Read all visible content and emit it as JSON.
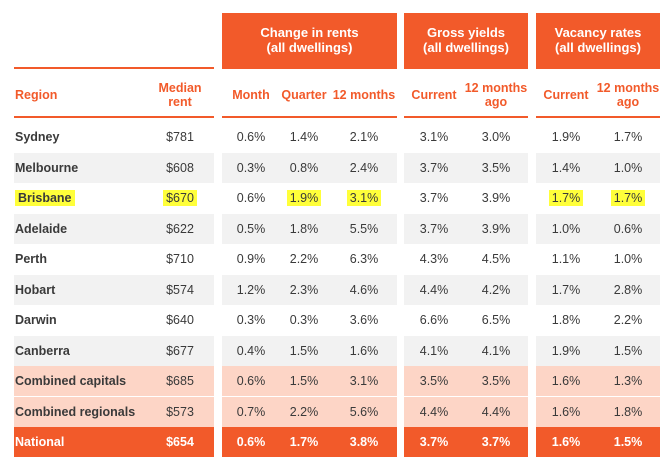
{
  "group_headers": {
    "change": "Change in rents\n(all dwellings)",
    "yields": "Gross yields\n(all dwellings)",
    "vacancy": "Vacancy rates\n(all dwellings)"
  },
  "columns": {
    "region": "Region",
    "median": "Median\nrent",
    "month": "Month",
    "quarter": "Quarter",
    "twelve": "12 months",
    "yield_current": "Current",
    "yield_12": "12 months\nago",
    "vac_current": "Current",
    "vac_12": "12 months\nago"
  },
  "colors": {
    "accent": "#f25a2a",
    "row_alt": "#f2f2f2",
    "combined_bg": "#fdd5c6",
    "national_bg": "#f25a2a",
    "highlight": "#ffff3a"
  },
  "rows": [
    {
      "region": "Sydney",
      "median": "$781",
      "month": "0.6%",
      "quarter": "1.4%",
      "twelve": "2.1%",
      "yc": "3.1%",
      "y12": "3.0%",
      "vc": "1.9%",
      "v12": "1.7%",
      "style": "white"
    },
    {
      "region": "Melbourne",
      "median": "$608",
      "month": "0.3%",
      "quarter": "0.8%",
      "twelve": "2.4%",
      "yc": "3.7%",
      "y12": "3.5%",
      "vc": "1.4%",
      "v12": "1.0%",
      "style": "grey"
    },
    {
      "region": "Brisbane",
      "median": "$670",
      "month": "0.6%",
      "quarter": "1.9%",
      "twelve": "3.1%",
      "yc": "3.7%",
      "y12": "3.9%",
      "vc": "1.7%",
      "v12": "1.7%",
      "style": "white",
      "highlighted": [
        "region",
        "median",
        "quarter",
        "twelve",
        "vc",
        "v12"
      ]
    },
    {
      "region": "Adelaide",
      "median": "$622",
      "month": "0.5%",
      "quarter": "1.8%",
      "twelve": "5.5%",
      "yc": "3.7%",
      "y12": "3.9%",
      "vc": "1.0%",
      "v12": "0.6%",
      "style": "grey"
    },
    {
      "region": "Perth",
      "median": "$710",
      "month": "0.9%",
      "quarter": "2.2%",
      "twelve": "6.3%",
      "yc": "4.3%",
      "y12": "4.5%",
      "vc": "1.1%",
      "v12": "1.0%",
      "style": "white"
    },
    {
      "region": "Hobart",
      "median": "$574",
      "month": "1.2%",
      "quarter": "2.3%",
      "twelve": "4.6%",
      "yc": "4.4%",
      "y12": "4.2%",
      "vc": "1.7%",
      "v12": "2.8%",
      "style": "grey"
    },
    {
      "region": "Darwin",
      "median": "$640",
      "month": "0.3%",
      "quarter": "0.3%",
      "twelve": "3.6%",
      "yc": "6.6%",
      "y12": "6.5%",
      "vc": "1.8%",
      "v12": "2.2%",
      "style": "white"
    },
    {
      "region": "Canberra",
      "median": "$677",
      "month": "0.4%",
      "quarter": "1.5%",
      "twelve": "1.6%",
      "yc": "4.1%",
      "y12": "4.1%",
      "vc": "1.9%",
      "v12": "1.5%",
      "style": "grey"
    },
    {
      "region": "Combined capitals",
      "median": "$685",
      "month": "0.6%",
      "quarter": "1.5%",
      "twelve": "3.1%",
      "yc": "3.5%",
      "y12": "3.5%",
      "vc": "1.6%",
      "v12": "1.3%",
      "style": "combined"
    },
    {
      "region": "Combined regionals",
      "median": "$573",
      "month": "0.7%",
      "quarter": "2.2%",
      "twelve": "5.6%",
      "yc": "4.4%",
      "y12": "4.4%",
      "vc": "1.6%",
      "v12": "1.8%",
      "style": "combined"
    },
    {
      "region": "National",
      "median": "$654",
      "month": "0.6%",
      "quarter": "1.7%",
      "twelve": "3.8%",
      "yc": "3.7%",
      "y12": "3.7%",
      "vc": "1.6%",
      "v12": "1.5%",
      "style": "national"
    }
  ]
}
